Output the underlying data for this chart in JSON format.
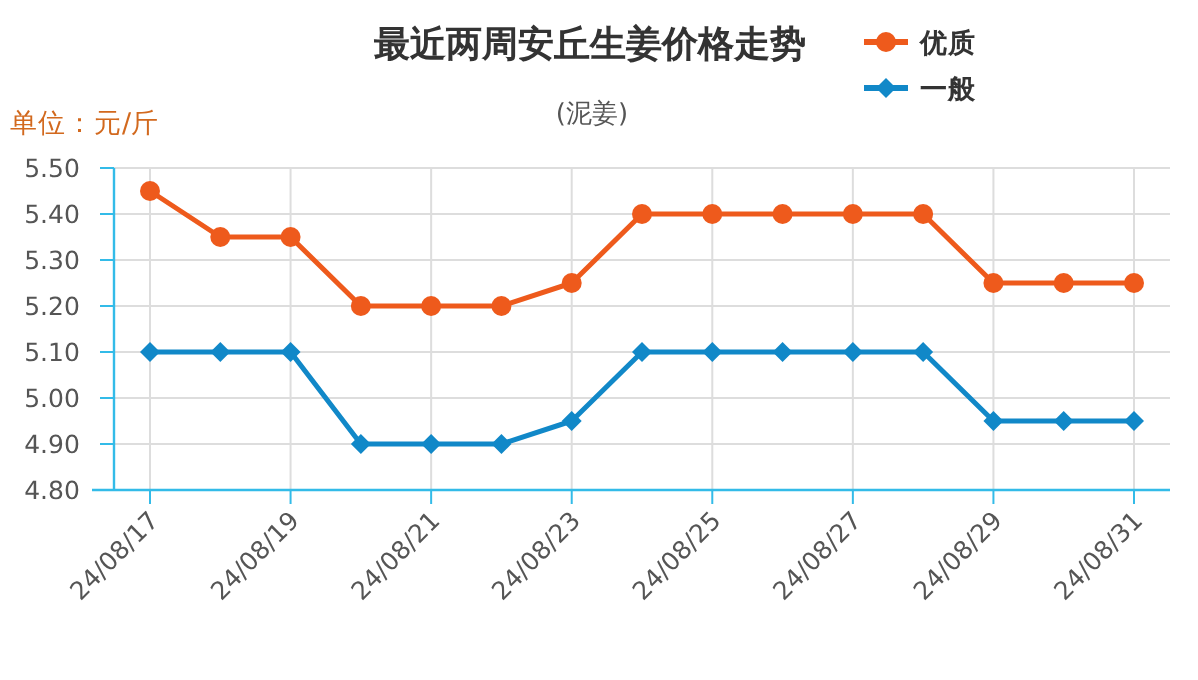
{
  "chart_data": {
    "type": "line",
    "title": "最近两周安丘生姜价格走势",
    "subtitle": "(泥姜)",
    "ylabel": "单位：元/斤",
    "categories": [
      "24/08/17",
      null,
      "24/08/19",
      null,
      "24/08/21",
      null,
      "24/08/23",
      null,
      "24/08/25",
      null,
      "24/08/27",
      null,
      "24/08/29",
      null,
      "24/08/31"
    ],
    "ylim": [
      4.8,
      5.5
    ],
    "yticks": [
      {
        "value": 4.8,
        "label": "4.80"
      },
      {
        "value": 4.9,
        "label": "4.90"
      },
      {
        "value": 5.0,
        "label": "5.00"
      },
      {
        "value": 5.1,
        "label": "5.10"
      },
      {
        "value": 5.2,
        "label": "5.20"
      },
      {
        "value": 5.3,
        "label": "5.30"
      },
      {
        "value": 5.4,
        "label": "5.40"
      },
      {
        "value": 5.5,
        "label": "5.50"
      }
    ],
    "grid": true,
    "legend": "top right",
    "line_style": "solid",
    "series": [
      {
        "name": "优质",
        "color": "#ee5a1c",
        "marker": "circle",
        "values": [
          5.45,
          5.35,
          5.35,
          5.2,
          5.2,
          5.2,
          5.25,
          5.4,
          5.4,
          5.4,
          5.4,
          5.4,
          5.25,
          5.25,
          5.25
        ]
      },
      {
        "name": "一般",
        "color": "#1188c8",
        "marker": "diamond",
        "values": [
          5.1,
          5.1,
          5.1,
          4.9,
          4.9,
          4.9,
          4.95,
          5.1,
          5.1,
          5.1,
          5.1,
          5.1,
          4.95,
          4.95,
          4.95
        ]
      }
    ]
  }
}
